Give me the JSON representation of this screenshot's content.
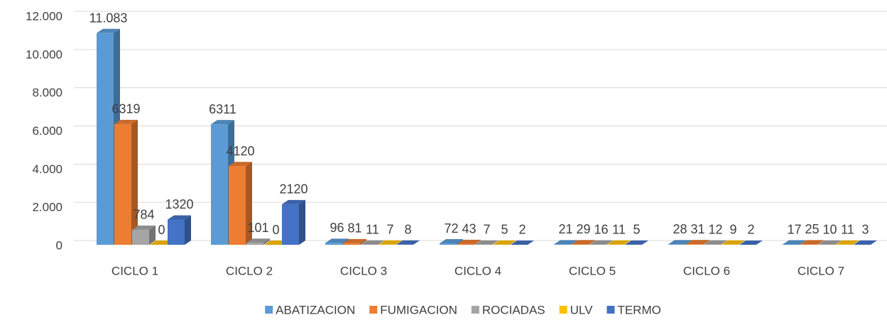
{
  "chart_data": {
    "type": "bar3d",
    "categories": [
      "CICLO 1",
      "CICLO 2",
      "CICLO 3",
      "CICLO 4",
      "CICLO 5",
      "CICLO 6",
      "CICLO 7"
    ],
    "series": [
      {
        "name": "ABATIZACION",
        "color": "#5b9bd5",
        "values": [
          11083,
          6311,
          96,
          72,
          21,
          28,
          17
        ],
        "value_labels": [
          "11.083",
          "6311",
          "96",
          "72",
          "21",
          "28",
          "17"
        ]
      },
      {
        "name": "FUMIGACION",
        "color": "#ed7d31",
        "values": [
          6319,
          4120,
          81,
          43,
          29,
          31,
          25
        ]
      },
      {
        "name": "ROCIADAS",
        "color": "#a5a5a5",
        "values": [
          784,
          101,
          11,
          7,
          16,
          12,
          10
        ]
      },
      {
        "name": "ULV",
        "color": "#ffc000",
        "values": [
          0,
          0,
          7,
          5,
          11,
          9,
          11
        ]
      },
      {
        "name": "TERMO",
        "color": "#4472c4",
        "values": [
          1320,
          2120,
          8,
          2,
          5,
          2,
          3
        ]
      }
    ],
    "ylim": [
      0,
      12000
    ],
    "yticks": [
      0,
      {
        "value": 2000,
        "label": "2.000"
      },
      {
        "value": 4000,
        "label": "4.000"
      },
      {
        "value": 6000,
        "label": "6.000"
      },
      {
        "value": 8000,
        "label": "8.000"
      },
      {
        "value": 10000,
        "label": "10.000"
      },
      {
        "value": 12000,
        "label": "12.000"
      }
    ],
    "grid": true,
    "legend": "bottom"
  }
}
